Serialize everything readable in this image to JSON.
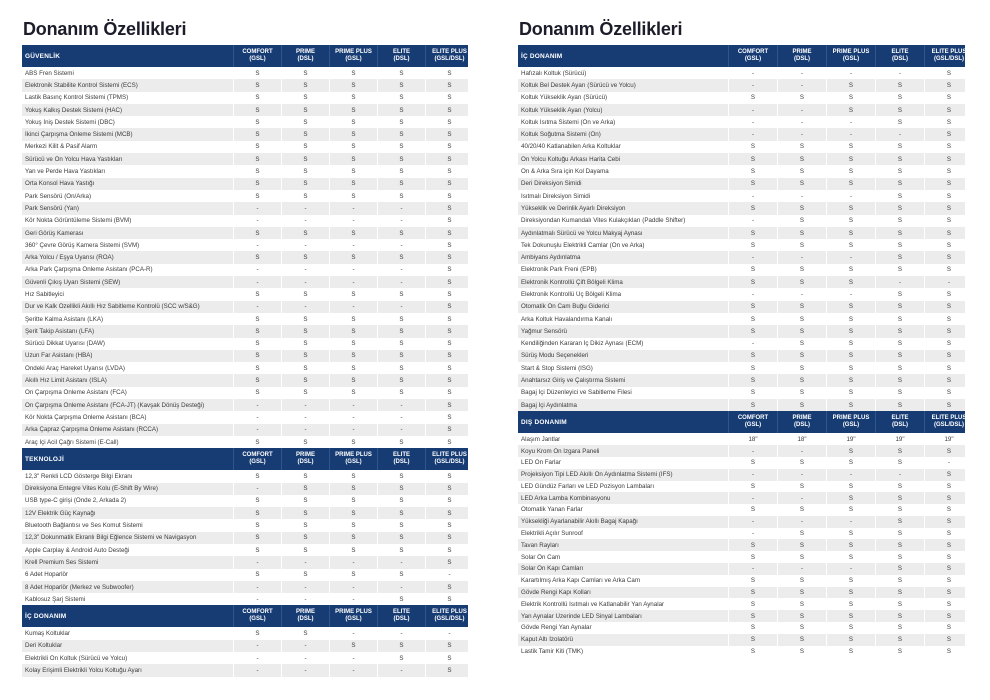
{
  "colors": {
    "header": "#173c74",
    "row_alt": "#ececec"
  },
  "columns": [
    {
      "name": "COMFORT",
      "sub": "(GSL)"
    },
    {
      "name": "PRIME",
      "sub": "(DSL)"
    },
    {
      "name": "PRIME PLUS",
      "sub": "(GSL)"
    },
    {
      "name": "ELITE",
      "sub": "(DSL)"
    },
    {
      "name": "ELITE PLUS",
      "sub": "(GSL/DSL)"
    }
  ],
  "pages": [
    {
      "title": "Donanım Özellikleri",
      "sections": [
        {
          "title": "GÜVENLİK",
          "rows": [
            [
              "ABS Fren Sistemi",
              "S",
              "S",
              "S",
              "S",
              "S"
            ],
            [
              "Elektronik Stabilite Kontrol Sistemi (ECS)",
              "S",
              "S",
              "S",
              "S",
              "S"
            ],
            [
              "Lastik Basınç Kontrol Sistemi (TPMS)",
              "S",
              "S",
              "S",
              "S",
              "S"
            ],
            [
              "Yokuş Kalkış Destek Sistemi (HAC)",
              "S",
              "S",
              "S",
              "S",
              "S"
            ],
            [
              "Yokuş İniş Destek Sistemi (DBC)",
              "S",
              "S",
              "S",
              "S",
              "S"
            ],
            [
              "İkinci Çarpışma Önleme Sistemi (MCB)",
              "S",
              "S",
              "S",
              "S",
              "S"
            ],
            [
              "Merkezi Kilit & Pasif Alarm",
              "S",
              "S",
              "S",
              "S",
              "S"
            ],
            [
              "Sürücü ve Ön Yolcu Hava Yastıkları",
              "S",
              "S",
              "S",
              "S",
              "S"
            ],
            [
              "Yan ve Perde Hava Yastıkları",
              "S",
              "S",
              "S",
              "S",
              "S"
            ],
            [
              "Orta Konsol Hava Yastığı",
              "S",
              "S",
              "S",
              "S",
              "S"
            ],
            [
              "Park Sensörü (Ön/Arka)",
              "S",
              "S",
              "S",
              "S",
              "S"
            ],
            [
              "Park Sensörü (Yan)",
              "-",
              "-",
              "-",
              "-",
              "S"
            ],
            [
              "Kör Nokta Görüntüleme Sistemi (BVM)",
              "-",
              "-",
              "-",
              "-",
              "S"
            ],
            [
              "Geri Görüş Kamerası",
              "S",
              "S",
              "S",
              "S",
              "S"
            ],
            [
              "360° Çevre Görüş Kamera Sistemi (SVM)",
              "-",
              "-",
              "-",
              "-",
              "S"
            ],
            [
              "Arka Yolcu / Eşya Uyarısı (ROA)",
              "S",
              "S",
              "S",
              "S",
              "S"
            ],
            [
              "Arka Park Çarpışma Önleme Asistanı (PCA-R)",
              "-",
              "-",
              "-",
              "-",
              "S"
            ],
            [
              "Güvenli Çıkış Uyarı Sistemi (SEW)",
              "-",
              "-",
              "-",
              "-",
              "S"
            ],
            [
              "Hız Sabitleyici",
              "S",
              "S",
              "S",
              "S",
              "S"
            ],
            [
              "Dur ve Kalk Özellikli Akıllı Hız Sabitleme Kontrolü (SCC w/S&G)",
              "-",
              "-",
              "-",
              "-",
              "S"
            ],
            [
              "Şeritte Kalma Asistanı (LKA)",
              "S",
              "S",
              "S",
              "S",
              "S"
            ],
            [
              "Şerit Takip Asistanı (LFA)",
              "S",
              "S",
              "S",
              "S",
              "S"
            ],
            [
              "Sürücü Dikkat Uyarısı (DAW)",
              "S",
              "S",
              "S",
              "S",
              "S"
            ],
            [
              "Uzun Far Asistanı (HBA)",
              "S",
              "S",
              "S",
              "S",
              "S"
            ],
            [
              "Öndeki Araç Hareket Uyarısı (LVDA)",
              "S",
              "S",
              "S",
              "S",
              "S"
            ],
            [
              "Akıllı Hız Limit Asistanı (ISLA)",
              "S",
              "S",
              "S",
              "S",
              "S"
            ],
            [
              "Ön Çarpışma Önleme Asistanı (FCA)",
              "S",
              "S",
              "S",
              "S",
              "S"
            ],
            [
              "Ön Çarpışma Önleme Asistanı (FCA-JT) (Kavşak Dönüş Desteği)",
              "-",
              "-",
              "-",
              "-",
              "S"
            ],
            [
              "Kör Nokta Çarpışma Önleme Asistanı (BCA)",
              "-",
              "-",
              "-",
              "-",
              "S"
            ],
            [
              "Arka Çapraz Çarpışma Önleme Asistanı (RCCA)",
              "-",
              "-",
              "-",
              "-",
              "S"
            ],
            [
              "Araç İçi Acil Çağrı Sistemi (E-Call)",
              "S",
              "S",
              "S",
              "S",
              "S"
            ]
          ]
        },
        {
          "title": "TEKNOLOJİ",
          "rows": [
            [
              "12,3\" Renkli LCD Gösterge Bilgi Ekranı",
              "S",
              "S",
              "S",
              "S",
              "S"
            ],
            [
              "Direksiyona Entegre Vites Kolu (E-Shift By Wire)",
              "-",
              "S",
              "S",
              "S",
              "S"
            ],
            [
              "USB type-C girişi (Önde 2, Arkada 2)",
              "S",
              "S",
              "S",
              "S",
              "S"
            ],
            [
              "12V Elektrik Güç Kaynağı",
              "S",
              "S",
              "S",
              "S",
              "S"
            ],
            [
              "Bluetooth Bağlantısı ve Ses Komut Sistemi",
              "S",
              "S",
              "S",
              "S",
              "S"
            ],
            [
              "12,3\" Dokunmatik Ekranlı Bilgi Eğlence Sistemi ve Navigasyon",
              "S",
              "S",
              "S",
              "S",
              "S"
            ],
            [
              "Apple Carplay & Android Auto Desteği",
              "S",
              "S",
              "S",
              "S",
              "S"
            ],
            [
              "Krell Premium Ses Sistemi",
              "-",
              "-",
              "-",
              "-",
              "S"
            ],
            [
              "6 Adet Hoparlör",
              "S",
              "S",
              "S",
              "S",
              "-"
            ],
            [
              "8 Adet Hoparlör (Merkez ve Subwoofer)",
              "-",
              "-",
              "-",
              "-",
              "S"
            ],
            [
              "Kablosuz Şarj Sistemi",
              "-",
              "-",
              "-",
              "S",
              "S"
            ]
          ]
        },
        {
          "title": "İÇ DONANIM",
          "rows": [
            [
              "Kumaş Koltuklar",
              "S",
              "S",
              "-",
              "-",
              "-"
            ],
            [
              "Deri Koltuklar",
              "-",
              "-",
              "S",
              "S",
              "S"
            ],
            [
              "Elektrikli Ön Koltuk (Sürücü ve Yolcu)",
              "-",
              "-",
              "-",
              "S",
              "S"
            ],
            [
              "Kolay Erişimli Elektrikli Yolcu Koltuğu Ayarı",
              "-",
              "-",
              "-",
              "-",
              "S"
            ]
          ]
        }
      ]
    },
    {
      "title": "Donanım Özellikleri",
      "sections": [
        {
          "title": "İÇ DONANIM",
          "rows": [
            [
              "Hafızalı Koltuk (Sürücü)",
              "-",
              "-",
              "-",
              "-",
              "S"
            ],
            [
              "Koltuk Bel Destek Ayarı (Sürücü ve Yolcu)",
              "-",
              "-",
              "S",
              "S",
              "S"
            ],
            [
              "Koltuk Yükseklik Ayarı (Sürücü)",
              "S",
              "S",
              "S",
              "S",
              "S"
            ],
            [
              "Koltuk Yükseklik Ayarı (Yolcu)",
              "-",
              "-",
              "S",
              "S",
              "S"
            ],
            [
              "Koltuk Isıtma Sistemi (Ön ve Arka)",
              "-",
              "-",
              "-",
              "S",
              "S"
            ],
            [
              "Koltuk Soğutma Sistemi (Ön)",
              "-",
              "-",
              "-",
              "-",
              "S"
            ],
            [
              "40/20/40 Katlanabilen Arka Koltuklar",
              "S",
              "S",
              "S",
              "S",
              "S"
            ],
            [
              "Ön Yolcu Koltuğu Arkası Harita Cebi",
              "S",
              "S",
              "S",
              "S",
              "S"
            ],
            [
              "Ön & Arka Sıra için Kol Dayama",
              "S",
              "S",
              "S",
              "S",
              "S"
            ],
            [
              "Deri Direksiyon Simidi",
              "S",
              "S",
              "S",
              "S",
              "S"
            ],
            [
              "Isıtmalı Direksiyon Simidi",
              "-",
              "-",
              "-",
              "S",
              "S"
            ],
            [
              "Yükseklik ve Derinlik Ayarlı Direksiyon",
              "S",
              "S",
              "S",
              "S",
              "S"
            ],
            [
              "Direksiyondan Kumandalı Vites Kulakçıkları (Paddle Shifter)",
              "-",
              "S",
              "S",
              "S",
              "S"
            ],
            [
              "Aydınlatmalı Sürücü ve Yolcu Makyaj Aynası",
              "S",
              "S",
              "S",
              "S",
              "S"
            ],
            [
              "Tek Dokunuşlu Elektrikli Camlar (Ön ve Arka)",
              "S",
              "S",
              "S",
              "S",
              "S"
            ],
            [
              "Ambiyans Aydınlatma",
              "-",
              "-",
              "-",
              "S",
              "S"
            ],
            [
              "Elektronik Park Freni (EPB)",
              "S",
              "S",
              "S",
              "S",
              "S"
            ],
            [
              "Elektronik Kontrollü Çift Bölgeli Klima",
              "S",
              "S",
              "S",
              "-",
              "-"
            ],
            [
              "Elektronik Kontrollü Üç Bölgeli Klima",
              "-",
              "-",
              "-",
              "S",
              "S"
            ],
            [
              "Otomatik Ön Cam Buğu Giderici",
              "S",
              "S",
              "S",
              "S",
              "S"
            ],
            [
              "Arka Koltuk Havalandırma Kanalı",
              "S",
              "S",
              "S",
              "S",
              "S"
            ],
            [
              "Yağmur Sensörü",
              "S",
              "S",
              "S",
              "S",
              "S"
            ],
            [
              "Kendiliğinden Kararan İç Dikiz Aynası (ECM)",
              "-",
              "S",
              "S",
              "S",
              "S"
            ],
            [
              "Sürüş Modu Seçenekleri",
              "S",
              "S",
              "S",
              "S",
              "S"
            ],
            [
              "Start & Stop Sistemi (ISG)",
              "S",
              "S",
              "S",
              "S",
              "S"
            ],
            [
              "Anahtarsız Giriş ve Çalıştırma Sistemi",
              "S",
              "S",
              "S",
              "S",
              "S"
            ],
            [
              "Bagaj İçi Düzenleyici ve Sabitleme Filesi",
              "S",
              "S",
              "S",
              "S",
              "S"
            ],
            [
              "Bagaj İçi Aydınlatma",
              "S",
              "S",
              "S",
              "S",
              "S"
            ]
          ]
        },
        {
          "title": "DIŞ DONANIM",
          "rows": [
            [
              "Alaşım Jantlar",
              "18\"",
              "18\"",
              "19\"",
              "19\"",
              "19\""
            ],
            [
              "Koyu Krom Ön Izgara Paneli",
              "-",
              "-",
              "S",
              "S",
              "S"
            ],
            [
              "LED Ön Farlar",
              "S",
              "S",
              "S",
              "S",
              "-"
            ],
            [
              "Projeksiyon Tipi LED Akıllı Ön Aydınlatma Sistemi (IFS)",
              "-",
              "-",
              "-",
              "-",
              "S"
            ],
            [
              "LED Gündüz Farları ve LED Pozisyon Lambaları",
              "S",
              "S",
              "S",
              "S",
              "S"
            ],
            [
              "LED Arka Lamba Kombinasyonu",
              "-",
              "-",
              "S",
              "S",
              "S"
            ],
            [
              "Otomatik Yanan Farlar",
              "S",
              "S",
              "S",
              "S",
              "S"
            ],
            [
              "Yüksekliği Ayarlanabilir Akıllı Bagaj Kapağı",
              "-",
              "-",
              "-",
              "S",
              "S"
            ],
            [
              "Elektrikli Açılır Sunroof",
              "-",
              "S",
              "S",
              "S",
              "S"
            ],
            [
              "Tavan Rayları",
              "S",
              "S",
              "S",
              "S",
              "S"
            ],
            [
              "Solar Ön Cam",
              "S",
              "S",
              "S",
              "S",
              "S"
            ],
            [
              "Solar Ön Kapı Camları",
              "-",
              "-",
              "-",
              "S",
              "S"
            ],
            [
              "Karartılmış Arka Kapı Camları ve Arka Cam",
              "S",
              "S",
              "S",
              "S",
              "S"
            ],
            [
              "Gövde Rengi Kapı Kolları",
              "S",
              "S",
              "S",
              "S",
              "S"
            ],
            [
              "Elektrik Kontrollü Isıtmalı ve Katlanabilir Yan Aynalar",
              "S",
              "S",
              "S",
              "S",
              "S"
            ],
            [
              "Yan Aynalar Üzerinde LED Sinyal Lambaları",
              "S",
              "S",
              "S",
              "S",
              "S"
            ],
            [
              "Gövde Rengi Yan Aynalar",
              "S",
              "S",
              "S",
              "S",
              "S"
            ],
            [
              "Kaput Altı İzolatörü",
              "S",
              "S",
              "S",
              "S",
              "S"
            ],
            [
              "Lastik Tamir Kiti (TMK)",
              "S",
              "S",
              "S",
              "S",
              "S"
            ]
          ]
        }
      ]
    }
  ]
}
